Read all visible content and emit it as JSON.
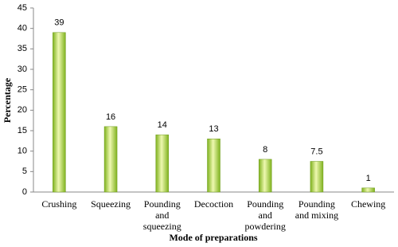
{
  "chart_data": {
    "type": "bar",
    "categories": [
      "Crushing",
      "Squeezing",
      "Pounding and squeezing",
      "Decoction",
      "Pounding and powdering",
      "Pounding and mixing",
      "Chewing"
    ],
    "values": [
      39,
      16,
      14,
      13,
      8,
      7.5,
      1
    ],
    "color": "#7fb21e",
    "ylim": [
      0,
      45
    ],
    "yticks": [
      0,
      5,
      10,
      15,
      20,
      25,
      30,
      35,
      40,
      45
    ],
    "grid": false,
    "xlabel": "Mode of preparations",
    "ylabel": "Percentage"
  }
}
